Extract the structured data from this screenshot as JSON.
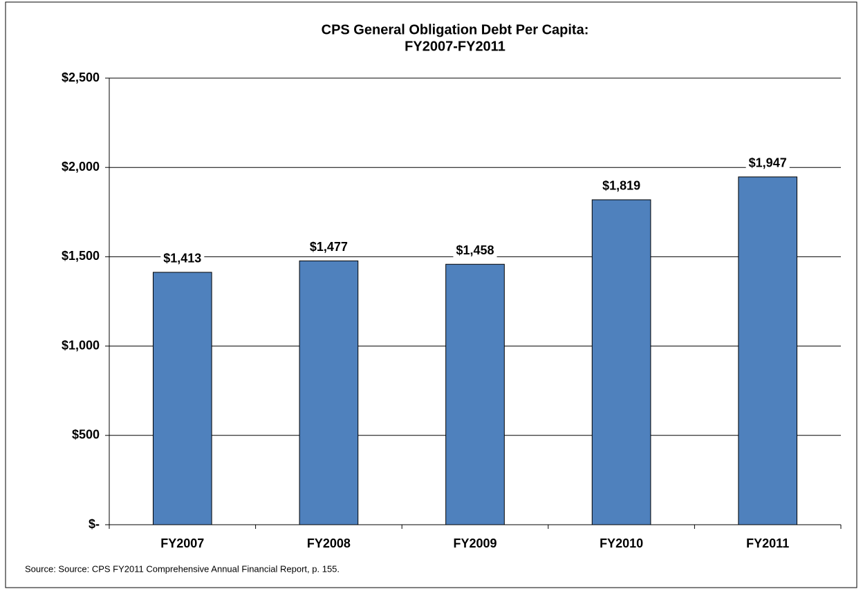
{
  "chart_data": {
    "type": "bar",
    "title": "CPS General Obligation Debt Per Capita:",
    "subtitle": "FY2007-FY2011",
    "categories": [
      "FY2007",
      "FY2008",
      "FY2009",
      "FY2010",
      "FY2011"
    ],
    "values": [
      1413,
      1477,
      1458,
      1819,
      1947
    ],
    "value_labels": [
      "$1,413",
      "$1,477",
      "$1,458",
      "$1,819",
      "$1,947"
    ],
    "color": "#4f81bd",
    "ylim": [
      0,
      2500
    ],
    "yticks": [
      {
        "value": 0,
        "label": "$-"
      },
      {
        "value": 500,
        "label": "$500"
      },
      {
        "value": 1000,
        "label": "$1,000"
      },
      {
        "value": 1500,
        "label": "$1,500"
      },
      {
        "value": 2000,
        "label": "$2,000"
      },
      {
        "value": 2500,
        "label": "$2,500"
      }
    ],
    "grid": true,
    "source": "Source: Source: CPS FY2011 Comprehensive Annual Financial Report, p. 155."
  }
}
